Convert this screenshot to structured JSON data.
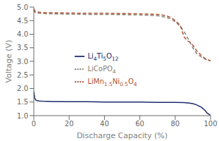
{
  "chart_data": {
    "type": "line",
    "xlabel": "Discharge Capacity (%)",
    "ylabel": "Voltage (V)",
    "xlim": [
      0,
      100
    ],
    "ylim": [
      1.0,
      5.0
    ],
    "xticks": [
      0,
      20,
      40,
      60,
      80,
      100
    ],
    "yticks": [
      {
        "value": 1,
        "label": "1.0"
      },
      1.5,
      {
        "value": 2,
        "label": "2.0"
      },
      2.5,
      {
        "value": 3,
        "label": "3.0"
      },
      3.5,
      {
        "value": 4,
        "label": "4.0"
      },
      4.5,
      {
        "value": 5,
        "label": "5.0"
      }
    ],
    "grid": false,
    "legend": "center",
    "series": [
      {
        "name": "LiCoPO4",
        "color": "#8B8070",
        "line_style": "dashed",
        "x": [
          0,
          0.5,
          1,
          2,
          3,
          5,
          10,
          20,
          30,
          40,
          50,
          60,
          65,
          70,
          75,
          78,
          80,
          83,
          85,
          88,
          90,
          92,
          95,
          97,
          100
        ],
        "values": [
          4.9,
          4.82,
          4.8,
          4.78,
          4.77,
          4.76,
          4.75,
          4.74,
          4.73,
          4.73,
          4.72,
          4.71,
          4.7,
          4.68,
          4.62,
          4.55,
          4.46,
          4.28,
          4.1,
          3.75,
          3.5,
          3.3,
          3.15,
          3.08,
          3.02
        ]
      },
      {
        "name": "LiMn1.5Ni0.5O4",
        "color": "#B05030",
        "line_style": "dashed",
        "x": [
          0,
          0.5,
          1,
          2,
          3,
          5,
          10,
          20,
          30,
          40,
          50,
          60,
          65,
          70,
          75,
          78,
          80,
          82,
          83,
          85,
          87,
          88,
          90,
          92,
          95,
          97,
          100
        ],
        "values": [
          4.94,
          4.86,
          4.84,
          4.82,
          4.81,
          4.8,
          4.79,
          4.78,
          4.77,
          4.77,
          4.76,
          4.75,
          4.74,
          4.73,
          4.68,
          4.6,
          4.5,
          4.38,
          4.3,
          3.9,
          3.75,
          3.72,
          3.6,
          3.4,
          3.2,
          3.1,
          3.02
        ]
      },
      {
        "name": "Li4Ti5O12",
        "color": "#1A2A6C",
        "line_style": "solid",
        "x": [
          0,
          0.5,
          1,
          2,
          3,
          5,
          10,
          20,
          30,
          40,
          50,
          60,
          70,
          80,
          85,
          88,
          90,
          92,
          95,
          97,
          98,
          100
        ],
        "values": [
          1.88,
          1.65,
          1.58,
          1.55,
          1.54,
          1.53,
          1.52,
          1.51,
          1.51,
          1.5,
          1.5,
          1.5,
          1.49,
          1.49,
          1.48,
          1.46,
          1.44,
          1.4,
          1.3,
          1.18,
          1.1,
          1.01
        ]
      }
    ]
  }
}
